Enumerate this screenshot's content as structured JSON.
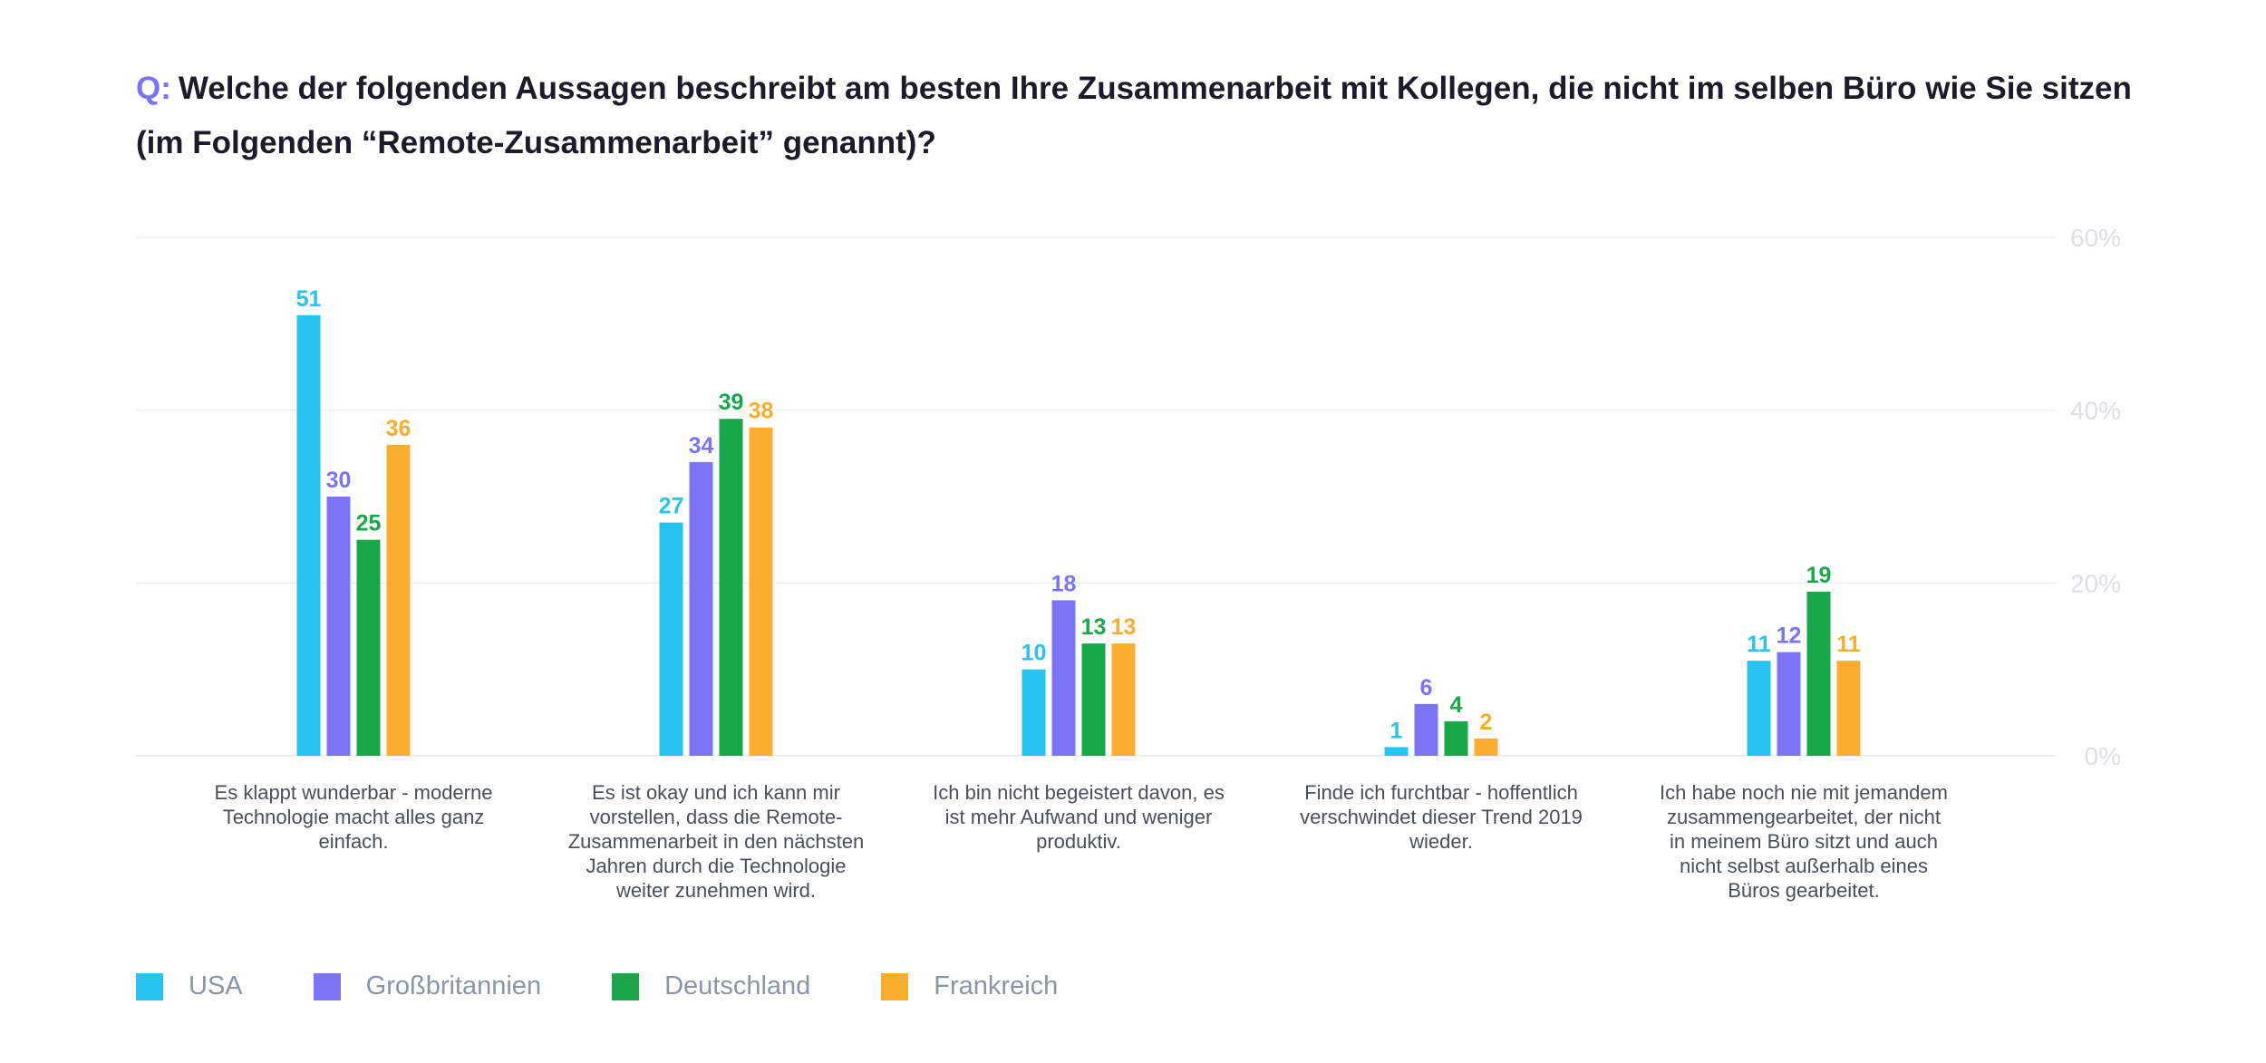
{
  "question": {
    "prefix": "Q:",
    "text": "Welche der folgenden Aussagen beschreibt am besten Ihre Zusammenarbeit mit Kollegen, die nicht im selben Büro wie Sie sitzen (im Folgenden “Remote-Zusammenarbeit” genannt)?"
  },
  "chart_data": {
    "type": "bar",
    "title": "Welche der folgenden Aussagen beschreibt am besten Ihre Zusammenarbeit mit Kollegen, die nicht im selben Büro wie Sie sitzen (im Folgenden “Remote-Zusammenarbeit” genannt)?",
    "categories": [
      [
        "Es klappt wunderbar - moderne",
        "Technologie macht alles ganz",
        "einfach."
      ],
      [
        "Es ist okay und ich kann mir",
        "vorstellen, dass die Remote-",
        "Zusammenarbeit in den nächsten",
        "Jahren durch die Technologie",
        "weiter zunehmen wird."
      ],
      [
        "Ich bin nicht begeistert davon, es",
        "ist mehr Aufwand und weniger",
        "produktiv."
      ],
      [
        "Finde ich furchtbar - hoffentlich",
        "verschwindet dieser Trend 2019",
        "wieder."
      ],
      [
        "Ich habe noch nie mit jemandem",
        "zusammengearbeitet, der nicht",
        "in meinem Büro sitzt und auch",
        "nicht selbst außerhalb eines",
        "Büros gearbeitet."
      ]
    ],
    "series": [
      {
        "name": "USA",
        "color": "#27c3f1",
        "values": [
          51,
          27,
          10,
          1,
          11
        ]
      },
      {
        "name": "Großbritannien",
        "color": "#7b75f5",
        "values": [
          30,
          34,
          18,
          6,
          12
        ]
      },
      {
        "name": "Deutschland",
        "color": "#18a84a",
        "values": [
          25,
          39,
          13,
          4,
          19
        ]
      },
      {
        "name": "Frankreich",
        "color": "#f9ad2c",
        "values": [
          36,
          38,
          13,
          2,
          11
        ]
      }
    ],
    "y_ticks": [
      "0%",
      "20%",
      "40%",
      "60%"
    ],
    "ylim": [
      0,
      60
    ],
    "grid": true,
    "axis_position": "right",
    "legend_position": "bottom-left"
  }
}
